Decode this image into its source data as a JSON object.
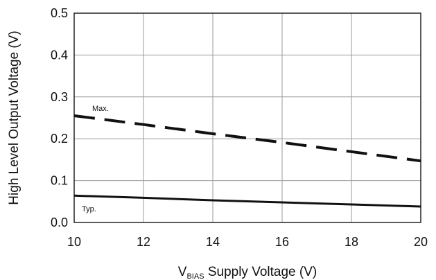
{
  "chart_data": {
    "type": "line",
    "xlabel_main": "V",
    "xlabel_sub": "BIAS",
    "xlabel_rest": " Supply Voltage (V)",
    "ylabel": "High Level Output Voltage (V)",
    "xlim": [
      10,
      20
    ],
    "ylim": [
      0,
      0.5
    ],
    "xticks": [
      10,
      12,
      14,
      16,
      18,
      20
    ],
    "yticks": [
      "0.0",
      "0.1",
      "0.2",
      "0.3",
      "0.4",
      "0.5"
    ],
    "grid": true,
    "series": [
      {
        "name": "Max.",
        "style": "dashed",
        "x": [
          10,
          12,
          14,
          16,
          18,
          20
        ],
        "values": [
          0.255,
          0.234,
          0.212,
          0.191,
          0.169,
          0.147
        ]
      },
      {
        "name": "Typ.",
        "style": "solid",
        "x": [
          10,
          12,
          14,
          16,
          18,
          20
        ],
        "values": [
          0.064,
          0.059,
          0.053,
          0.048,
          0.043,
          0.038
        ]
      }
    ]
  }
}
